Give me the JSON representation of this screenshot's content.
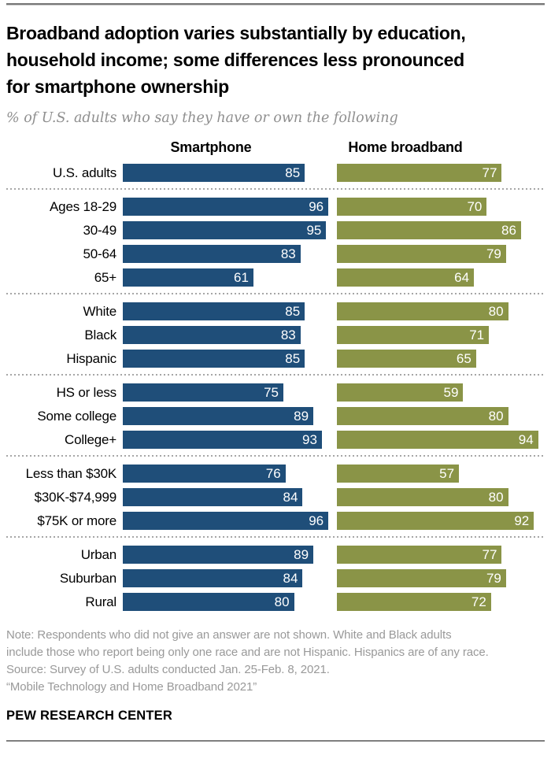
{
  "header": {
    "title_lines": [
      "Broadband adoption varies substantially by education,",
      "household income; some differences less pronounced",
      "for smartphone ownership"
    ],
    "subtitle": "% of U.S. adults who say they have or own the following"
  },
  "chart_data": {
    "type": "bar",
    "orientation": "horizontal",
    "xlim": [
      0,
      100
    ],
    "grid": false,
    "legend_position": "column-headers-top",
    "columns": [
      "Smartphone",
      "Home broadband"
    ],
    "colors": {
      "smartphone_bar": "#1F4E79",
      "broadband_bar": "#8A9447",
      "value_label": "#FFFFFF"
    },
    "groups": [
      {
        "name": "overall",
        "rows": [
          {
            "label": "U.S. adults",
            "smartphone": 85,
            "home_broadband": 77
          }
        ]
      },
      {
        "name": "age",
        "rows": [
          {
            "label": "Ages 18-29",
            "smartphone": 96,
            "home_broadband": 70
          },
          {
            "label": "30-49",
            "smartphone": 95,
            "home_broadband": 86
          },
          {
            "label": "50-64",
            "smartphone": 83,
            "home_broadband": 79
          },
          {
            "label": "65+",
            "smartphone": 61,
            "home_broadband": 64
          }
        ]
      },
      {
        "name": "race-ethnicity",
        "rows": [
          {
            "label": "White",
            "smartphone": 85,
            "home_broadband": 80
          },
          {
            "label": "Black",
            "smartphone": 83,
            "home_broadband": 71
          },
          {
            "label": "Hispanic",
            "smartphone": 85,
            "home_broadband": 65
          }
        ]
      },
      {
        "name": "education",
        "rows": [
          {
            "label": "HS or less",
            "smartphone": 75,
            "home_broadband": 59
          },
          {
            "label": "Some college",
            "smartphone": 89,
            "home_broadband": 80
          },
          {
            "label": "College+",
            "smartphone": 93,
            "home_broadband": 94
          }
        ]
      },
      {
        "name": "income",
        "rows": [
          {
            "label": "Less than $30K",
            "smartphone": 76,
            "home_broadband": 57
          },
          {
            "label": "$30K-$74,999",
            "smartphone": 84,
            "home_broadband": 80
          },
          {
            "label": "$75K or more",
            "smartphone": 96,
            "home_broadband": 92
          }
        ]
      },
      {
        "name": "community",
        "rows": [
          {
            "label": "Urban",
            "smartphone": 89,
            "home_broadband": 77
          },
          {
            "label": "Suburban",
            "smartphone": 84,
            "home_broadband": 79
          },
          {
            "label": "Rural",
            "smartphone": 80,
            "home_broadband": 72
          }
        ]
      }
    ]
  },
  "footer": {
    "note_lines": [
      "Note: Respondents who did not give an answer are not shown. White and Black adults",
      "include those who report being only one race and are not Hispanic. Hispanics are of any race."
    ],
    "source": "Source: Survey of U.S. adults conducted Jan. 25-Feb. 8, 2021.",
    "report_title": "“Mobile Technology and Home Broadband 2021”",
    "brand": "PEW RESEARCH CENTER"
  }
}
